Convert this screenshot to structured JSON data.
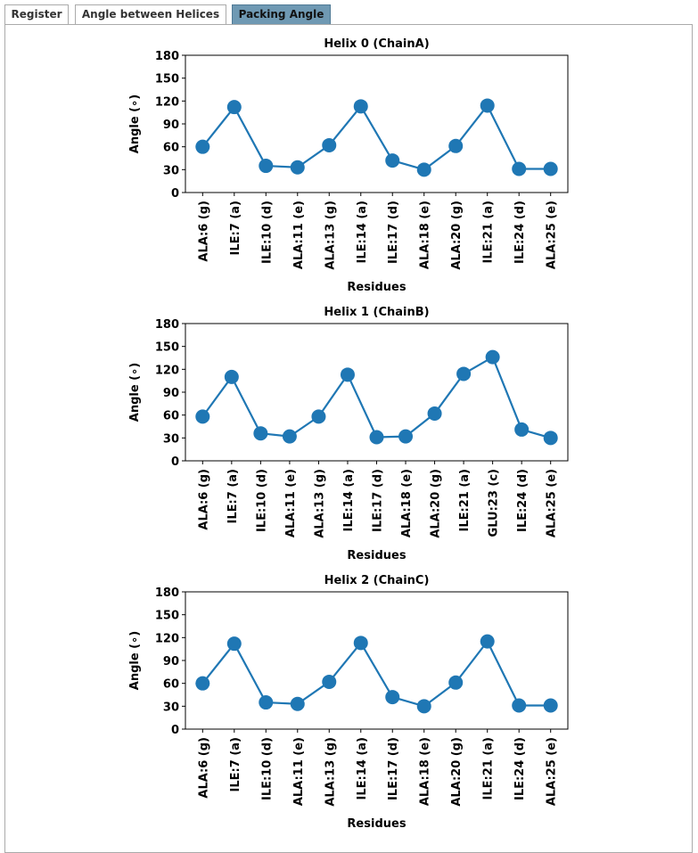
{
  "tabs": [
    {
      "label": "Register",
      "active": false
    },
    {
      "label": "Angle between Helices",
      "active": false
    },
    {
      "label": "Packing Angle",
      "active": true
    }
  ],
  "colors": {
    "series": "#1f77b4",
    "active_tab": "#6f99b3"
  },
  "chart_data": [
    {
      "type": "line",
      "title": "Helix 0 (ChainA)",
      "xlabel": "Residues",
      "ylabel": "Angle (∘)",
      "ylim": [
        0,
        180
      ],
      "yticks": [
        0,
        30,
        60,
        90,
        120,
        150,
        180
      ],
      "grid": false,
      "categories": [
        "ALA:6 (g)",
        "ILE:7 (a)",
        "ILE:10 (d)",
        "ALA:11 (e)",
        "ALA:13 (g)",
        "ILE:14 (a)",
        "ILE:17 (d)",
        "ALA:18 (e)",
        "ALA:20 (g)",
        "ILE:21 (a)",
        "ILE:24 (d)",
        "ALA:25 (e)"
      ],
      "values": [
        60,
        112,
        35,
        33,
        62,
        113,
        42,
        30,
        61,
        114,
        31,
        31
      ]
    },
    {
      "type": "line",
      "title": "Helix 1 (ChainB)",
      "xlabel": "Residues",
      "ylabel": "Angle (∘)",
      "ylim": [
        0,
        180
      ],
      "yticks": [
        0,
        30,
        60,
        90,
        120,
        150,
        180
      ],
      "grid": false,
      "categories": [
        "ALA:6 (g)",
        "ILE:7 (a)",
        "ILE:10 (d)",
        "ALA:11 (e)",
        "ALA:13 (g)",
        "ILE:14 (a)",
        "ILE:17 (d)",
        "ALA:18 (e)",
        "ALA:20 (g)",
        "ILE:21 (a)",
        "GLU:23 (c)",
        "ILE:24 (d)",
        "ALA:25 (e)"
      ],
      "values": [
        58,
        110,
        36,
        32,
        58,
        113,
        31,
        32,
        62,
        114,
        136,
        41,
        30
      ]
    },
    {
      "type": "line",
      "title": "Helix 2 (ChainC)",
      "xlabel": "Residues",
      "ylabel": "Angle (∘)",
      "ylim": [
        0,
        180
      ],
      "yticks": [
        0,
        30,
        60,
        90,
        120,
        150,
        180
      ],
      "grid": false,
      "categories": [
        "ALA:6 (g)",
        "ILE:7 (a)",
        "ILE:10 (d)",
        "ALA:11 (e)",
        "ALA:13 (g)",
        "ILE:14 (a)",
        "ILE:17 (d)",
        "ALA:18 (e)",
        "ALA:20 (g)",
        "ILE:21 (a)",
        "ILE:24 (d)",
        "ALA:25 (e)"
      ],
      "values": [
        60,
        112,
        35,
        33,
        62,
        113,
        42,
        30,
        61,
        115,
        31,
        31
      ]
    }
  ]
}
